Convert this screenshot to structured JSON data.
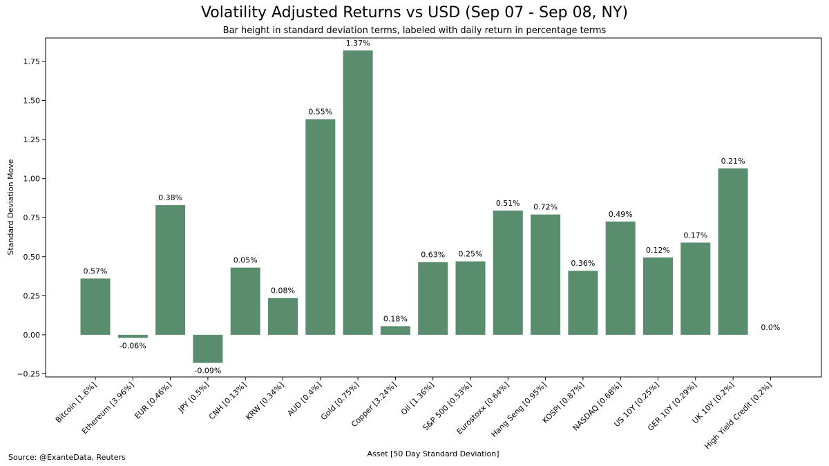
{
  "chart_data": {
    "type": "bar",
    "title": "Volatility Adjusted Returns vs USD (Sep 07 - Sep 08, NY)",
    "subtitle": "Bar height in standard deviation terms, labeled with daily return in percentage terms",
    "xlabel": "Asset [50 Day Standard Deviation]",
    "ylabel": "Standard Deviation Move",
    "ylim": [
      -0.27,
      1.9
    ],
    "yticks": [
      -0.25,
      0.0,
      0.25,
      0.5,
      0.75,
      1.0,
      1.25,
      1.5,
      1.75
    ],
    "ytick_labels": [
      "−0.25",
      "0.00",
      "0.25",
      "0.50",
      "0.75",
      "1.00",
      "1.25",
      "1.50",
      "1.75"
    ],
    "bar_color": "#5a8c6e",
    "grid": false,
    "categories": [
      "Bitcoin [1.6%]",
      "Ethereum [3.96%]",
      "EUR [0.46%]",
      "JPY [0.5%]",
      "CNH [0.13%]",
      "KRW [0.34%]",
      "AUD [0.4%]",
      "Gold [0.75%]",
      "Copper [3.24%]",
      "Oil [1.36%]",
      "S&P 500 [0.53%]",
      "Eurostoxx [0.64%]",
      "Hang Seng [0.95%]",
      "KOSPI [0.87%]",
      "NASDAQ [0.68%]",
      "US 10Y [0.25%]",
      "GER 10Y [0.29%]",
      "UK 10Y [0.2%]",
      "High Yield Credit [0.2%]"
    ],
    "values": [
      0.36,
      -0.02,
      0.83,
      -0.18,
      0.43,
      0.235,
      1.38,
      1.82,
      0.055,
      0.465,
      0.47,
      0.795,
      0.77,
      0.41,
      0.725,
      0.495,
      0.59,
      1.065,
      0.0
    ],
    "labels": [
      "0.57%",
      "-0.06%",
      "0.38%",
      "-0.09%",
      "0.05%",
      "0.08%",
      "0.55%",
      "1.37%",
      "0.18%",
      "0.63%",
      "0.25%",
      "0.51%",
      "0.72%",
      "0.36%",
      "0.49%",
      "0.12%",
      "0.17%",
      "0.21%",
      "0.0%"
    ]
  },
  "source": "Source: @ExanteData, Reuters"
}
